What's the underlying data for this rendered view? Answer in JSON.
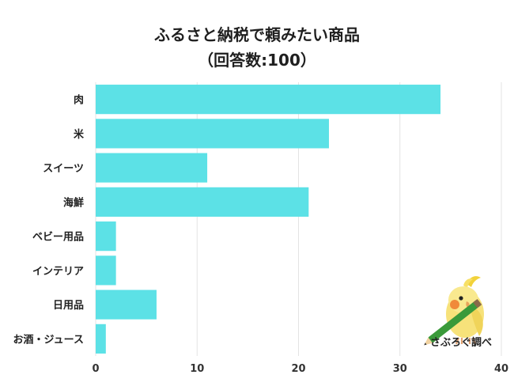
{
  "chart_data": {
    "type": "bar",
    "orientation": "horizontal",
    "title": "ふるさと納税で頼みたい商品",
    "subtitle": "（回答数:100）",
    "categories": [
      "肉",
      "米",
      "スイーツ",
      "海鮮",
      "ベビー用品",
      "インテリア",
      "日用品",
      "お酒・ジュース"
    ],
    "values": [
      34,
      23,
      11,
      21,
      2,
      2,
      6,
      1
    ],
    "xlim": [
      0,
      40
    ],
    "xticks": [
      0,
      10,
      20,
      30,
      40
    ],
    "grid": true,
    "bar_color": "#5ce1e6",
    "xlabel": "",
    "ylabel": ""
  },
  "logo": {
    "text": "さぶろぐ調べ",
    "icon": "cockatiel-with-pencil-icon"
  }
}
